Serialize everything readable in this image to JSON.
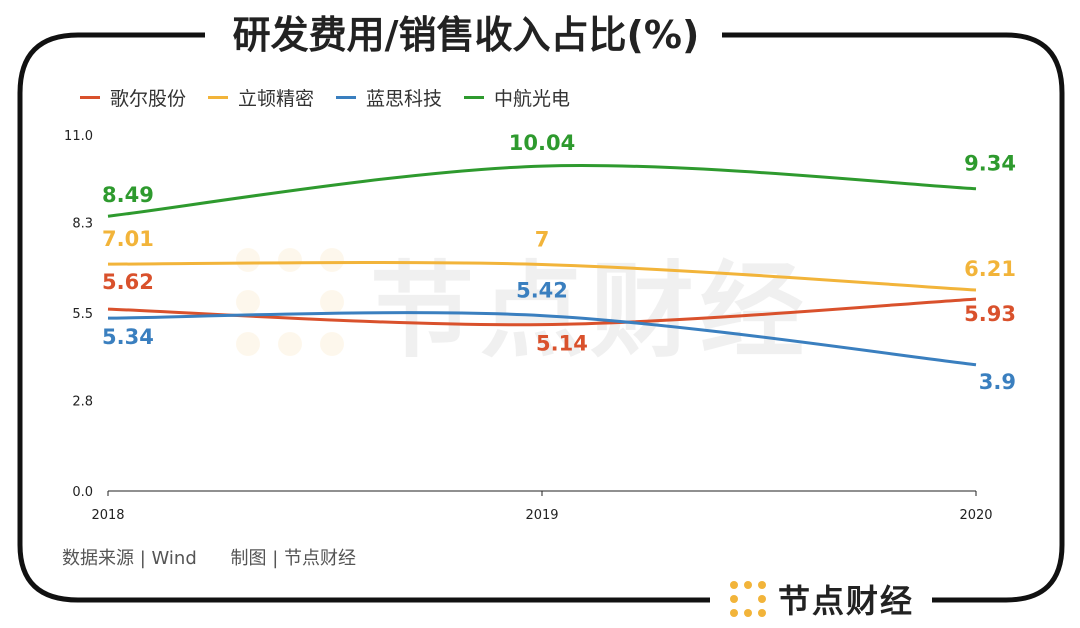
{
  "title": "研发费用/销售收入占比(%)",
  "source_note": "数据来源 | Wind",
  "made_by_note": "制图 | 节点财经",
  "brand_name": "节点财经",
  "watermark_text": "节点财经",
  "colors": {
    "frame": "#111111",
    "brand_dots": "#f2b43a"
  },
  "chart_data": {
    "type": "line",
    "categories": [
      "2018",
      "2019",
      "2020"
    ],
    "y_ticks": [
      "11.0",
      "8.3",
      "5.5",
      "2.8",
      "0.0"
    ],
    "ylim": [
      0,
      11
    ],
    "grid": false,
    "legend_position": "top-left",
    "series": [
      {
        "name": "歌尔股份",
        "color": "#d9512c",
        "values": [
          5.62,
          5.14,
          5.93
        ],
        "labels": [
          "5.62",
          "5.14",
          "5.93"
        ]
      },
      {
        "name": "立顿精密",
        "color": "#f2b43a",
        "values": [
          7.01,
          7,
          6.21
        ],
        "labels": [
          "7.01",
          "7",
          "6.21"
        ]
      },
      {
        "name": "蓝思科技",
        "color": "#3a7fbf",
        "values": [
          5.34,
          5.42,
          3.9
        ],
        "labels": [
          "5.34",
          "5.42",
          "3.9"
        ]
      },
      {
        "name": "中航光电",
        "color": "#2e9a2e",
        "values": [
          8.49,
          10.04,
          9.34
        ],
        "labels": [
          "8.49",
          "10.04",
          "9.34"
        ]
      }
    ]
  }
}
